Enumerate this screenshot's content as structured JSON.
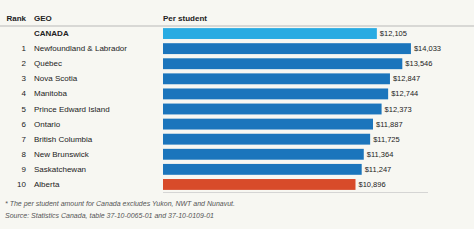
{
  "chart_data": {
    "type": "bar",
    "orientation": "horizontal",
    "categories": [
      "CANADA",
      "Newfoundland & Labrador",
      "Québec",
      "Nova Scotia",
      "Manitoba",
      "Prince Edward Island",
      "Ontario",
      "British Columbia",
      "New Brunswick",
      "Saskatchewan",
      "Alberta"
    ],
    "values": [
      12105,
      14033,
      13546,
      12847,
      12744,
      12373,
      11887,
      11725,
      11364,
      11247,
      10896
    ],
    "colors": [
      "#29ABE2",
      "#1B75BC",
      "#1B75BC",
      "#1B75BC",
      "#1B75BC",
      "#1B75BC",
      "#1B75BC",
      "#1B75BC",
      "#1B75BC",
      "#1B75BC",
      "#D84B2A"
    ],
    "value_labels": [
      "$12,105",
      "$14,033",
      "$13,546",
      "$12,847",
      "$12,744",
      "$12,373",
      "$11,887",
      "$11,725",
      "$11,364",
      "$11,247",
      "$10,896"
    ],
    "data_labels": true,
    "ranks": [
      null,
      "1",
      "2",
      "3",
      "4",
      "5",
      "6",
      "7",
      "8",
      "9",
      "10"
    ],
    "column_headers": [
      "Rank",
      "GEO",
      "Per student"
    ],
    "footnotes": [
      "* The per student amount for Canada excludes Yukon, NWT and Nunavut.",
      "Source: Statistics Canada, table 37-10-0065-01 and 37-10-0109-01"
    ],
    "xlim": [
      0,
      15000
    ],
    "tick_labels": false,
    "grid": false
  }
}
